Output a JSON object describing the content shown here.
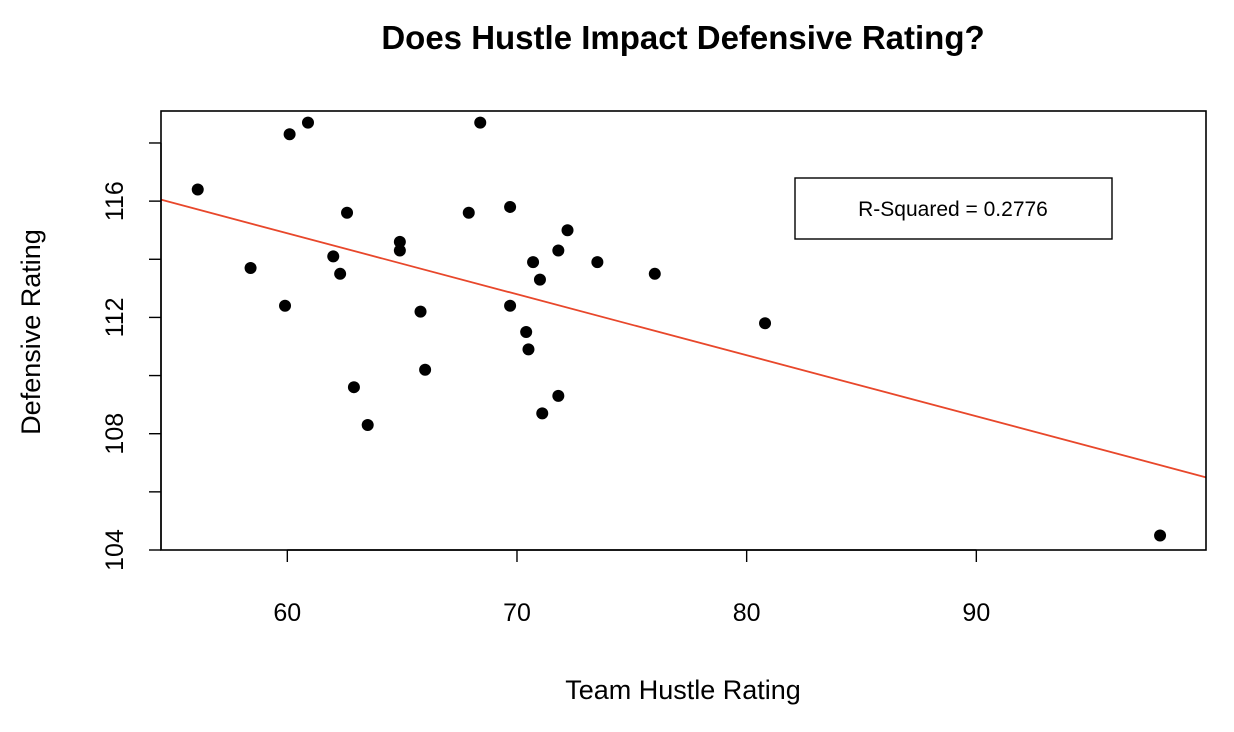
{
  "chart_data": {
    "type": "scatter",
    "title": "Does Hustle Impact Defensive Rating?",
    "xlabel": "Team Hustle Rating",
    "ylabel": "Defensive Rating",
    "xlim": [
      54.5,
      100
    ],
    "ylim": [
      104,
      119.1
    ],
    "x_ticks": [
      60,
      70,
      80,
      90
    ],
    "y_ticks": [
      104,
      106,
      108,
      110,
      112,
      114,
      116,
      118
    ],
    "y_tick_labels": [
      "104",
      "",
      "108",
      "",
      "112",
      "",
      "116",
      ""
    ],
    "points": [
      {
        "x": 56.1,
        "y": 116.4
      },
      {
        "x": 58.4,
        "y": 113.7
      },
      {
        "x": 59.9,
        "y": 112.4
      },
      {
        "x": 60.1,
        "y": 118.3
      },
      {
        "x": 60.9,
        "y": 118.7
      },
      {
        "x": 62.0,
        "y": 114.1
      },
      {
        "x": 62.3,
        "y": 113.5
      },
      {
        "x": 62.6,
        "y": 115.6
      },
      {
        "x": 62.9,
        "y": 109.6
      },
      {
        "x": 63.5,
        "y": 108.3
      },
      {
        "x": 64.9,
        "y": 114.6
      },
      {
        "x": 64.9,
        "y": 114.3
      },
      {
        "x": 65.8,
        "y": 112.2
      },
      {
        "x": 66.0,
        "y": 110.2
      },
      {
        "x": 67.9,
        "y": 115.6
      },
      {
        "x": 68.4,
        "y": 118.7
      },
      {
        "x": 69.7,
        "y": 115.8
      },
      {
        "x": 69.7,
        "y": 112.4
      },
      {
        "x": 70.4,
        "y": 111.5
      },
      {
        "x": 70.5,
        "y": 110.9
      },
      {
        "x": 70.7,
        "y": 113.9
      },
      {
        "x": 71.0,
        "y": 113.3
      },
      {
        "x": 71.1,
        "y": 108.7
      },
      {
        "x": 71.8,
        "y": 114.3
      },
      {
        "x": 71.8,
        "y": 109.3
      },
      {
        "x": 72.2,
        "y": 115.0
      },
      {
        "x": 73.5,
        "y": 113.9
      },
      {
        "x": 76.0,
        "y": 113.5
      },
      {
        "x": 80.8,
        "y": 111.8
      },
      {
        "x": 98.0,
        "y": 104.5
      }
    ],
    "regression_line": {
      "x": [
        54.5,
        100
      ],
      "y": [
        116.05,
        106.5
      ],
      "color": "#e8472b"
    },
    "annotation": "R-Squared = 0.2776",
    "point_color": "#000000",
    "grid": false,
    "legend": "none"
  }
}
